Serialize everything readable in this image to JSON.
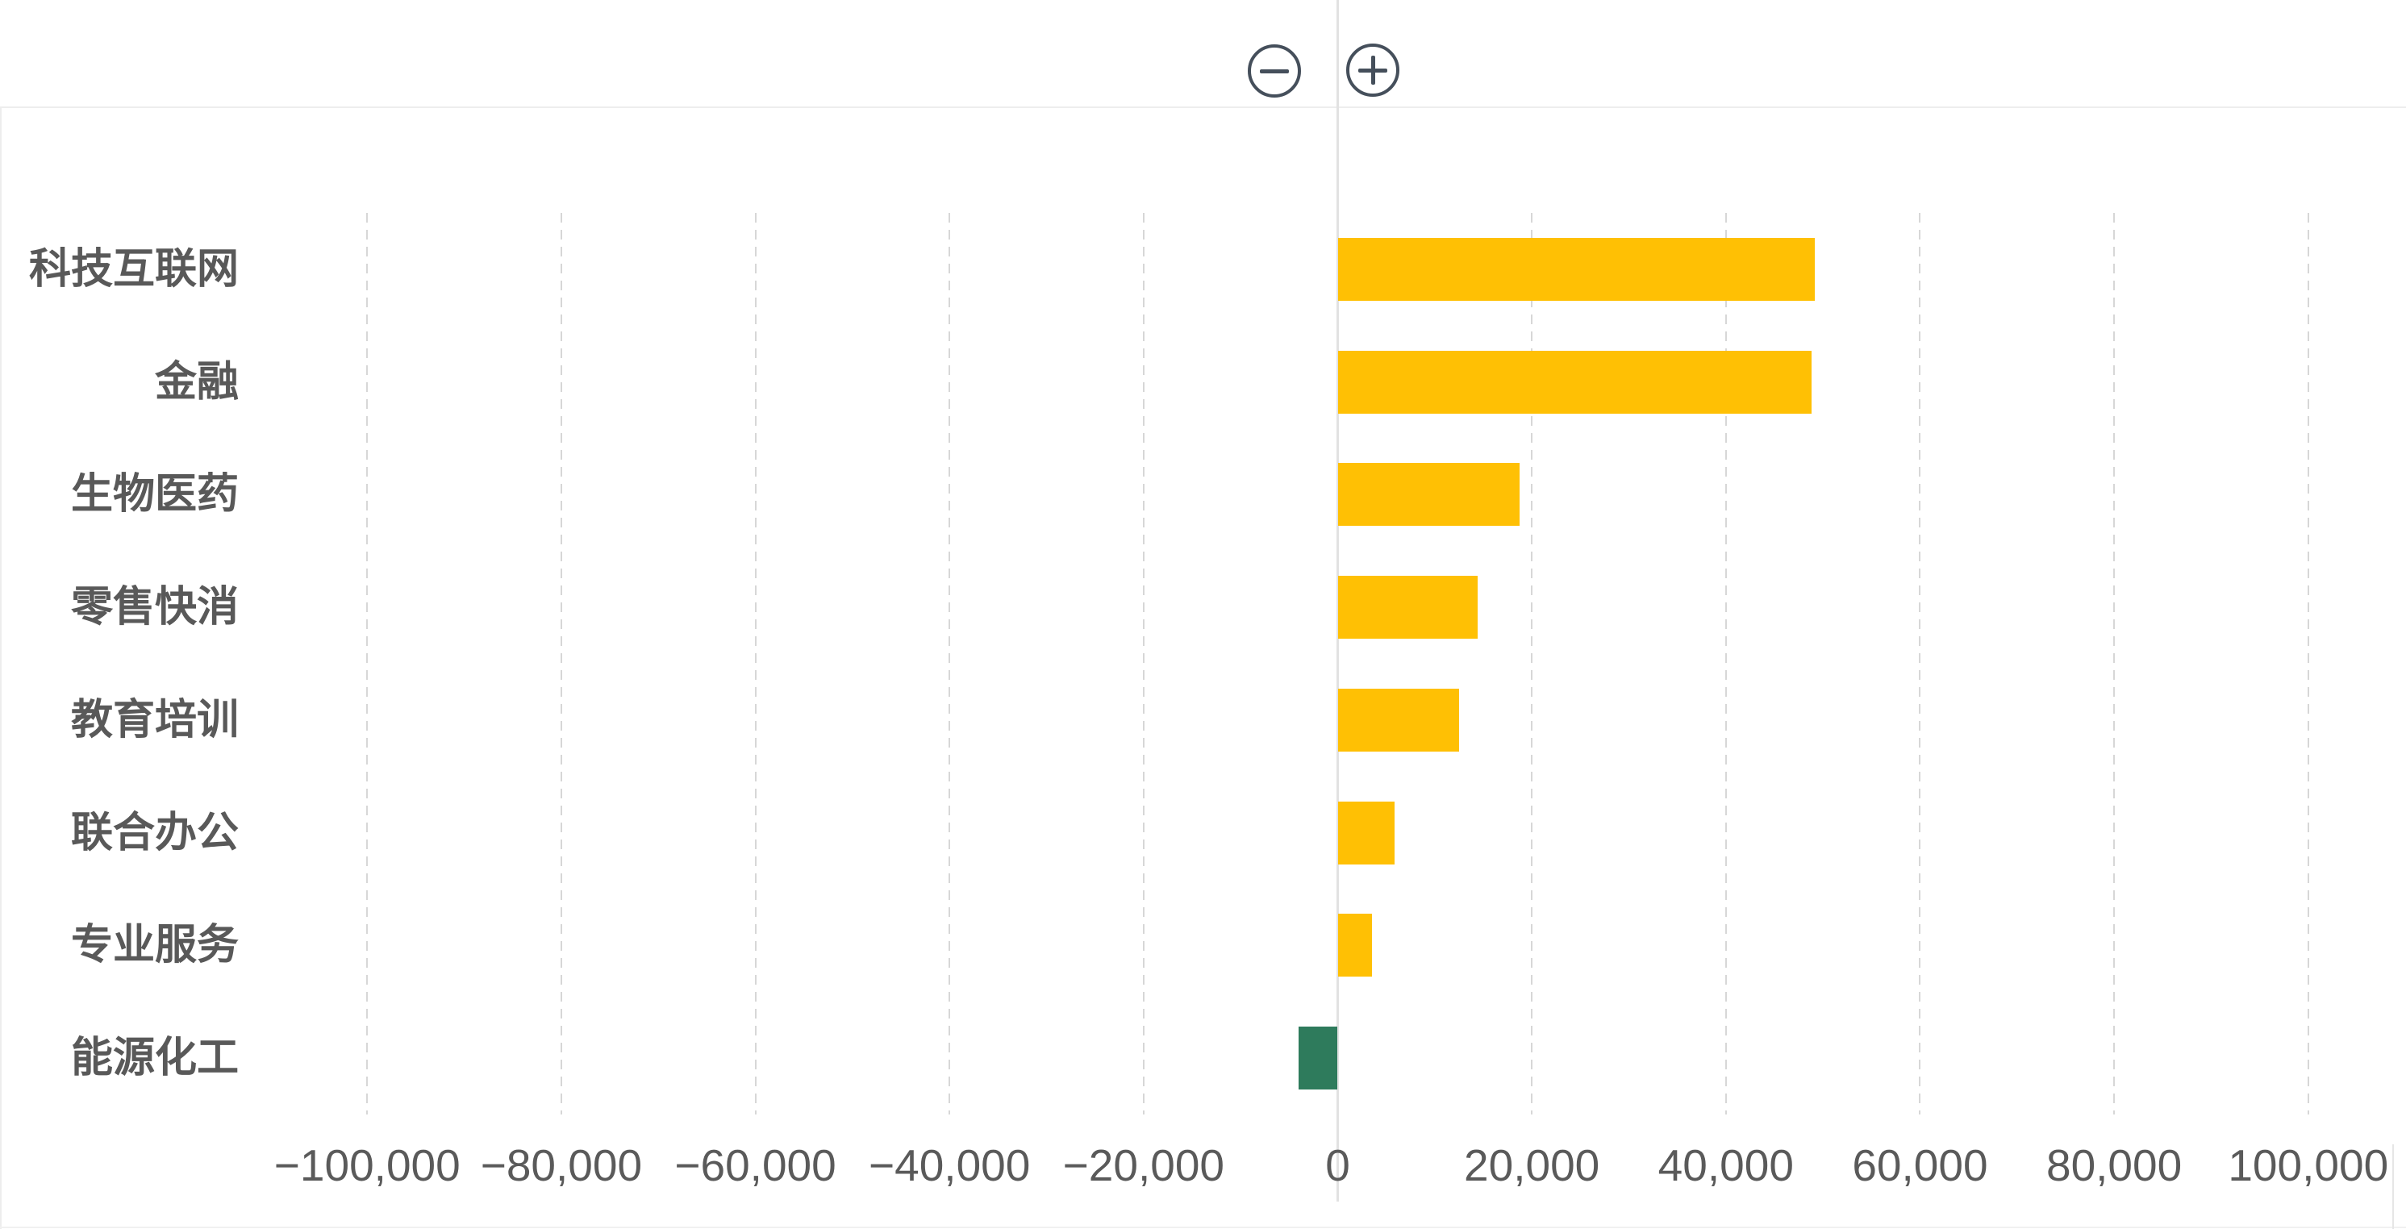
{
  "zoom_controls": {
    "zoom_out_icon": "minus-circle",
    "zoom_in_icon": "plus-circle",
    "stroke_color": "#454F5B"
  },
  "chart_data": {
    "type": "bar",
    "orientation": "horizontal",
    "title": "",
    "xlabel": "",
    "ylabel": "",
    "categories": [
      "科技互联网",
      "金融",
      "生物医药",
      "零售快消",
      "教育培训",
      "联合办公",
      "专业服务",
      "能源化工"
    ],
    "values": [
      49200,
      48800,
      18700,
      14400,
      12500,
      5900,
      3500,
      -4000
    ],
    "x_ticks": [
      -100000,
      -80000,
      -60000,
      -40000,
      -20000,
      0,
      20000,
      40000,
      60000,
      80000,
      100000
    ],
    "x_tick_labels": [
      "−100,000",
      "−80,000",
      "−60,000",
      "−40,000",
      "−20,000",
      "0",
      "20,000",
      "40,000",
      "60,000",
      "80,000",
      "100,000"
    ],
    "xlim": [
      -100000,
      100000
    ],
    "grid": "vertical-dashed",
    "legend": "none",
    "colors": {
      "positive_bar": "#FFC004",
      "negative_bar": "#2E7B5C",
      "category_text": "#595959",
      "tick_text": "#5A5A5A",
      "grid_line": "#D7D7D7",
      "zero_line": "#E2E2E2",
      "border": "#EDEDED",
      "button_stroke": "#454F5B"
    }
  }
}
